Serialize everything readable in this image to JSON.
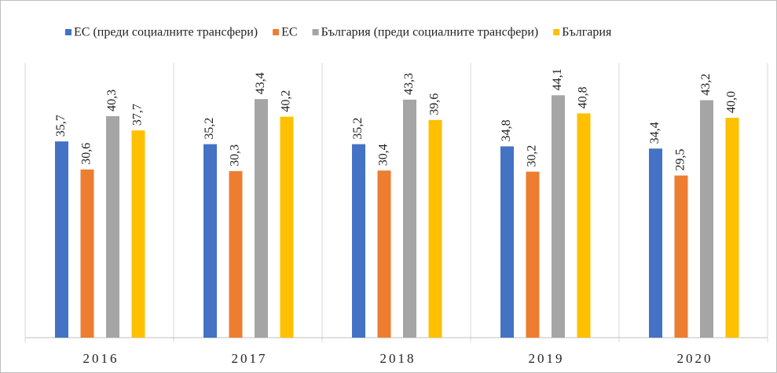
{
  "chart_data": {
    "type": "bar",
    "categories": [
      "2016",
      "2017",
      "2018",
      "2019",
      "2020"
    ],
    "ylim": [
      0,
      50
    ],
    "legend": "top",
    "series": [
      {
        "name": "ЕС (преди социалните трансфери)",
        "color": "#4472c4",
        "values": [
          35.7,
          35.2,
          35.2,
          34.8,
          34.4
        ],
        "value_labels": [
          "35,7",
          "35,2",
          "35,2",
          "34,8",
          "34,4"
        ]
      },
      {
        "name": "ЕС",
        "color": "#ed7d31",
        "values": [
          30.6,
          30.3,
          30.4,
          30.2,
          29.5
        ],
        "value_labels": [
          "30,6",
          "30,3",
          "30,4",
          "30,2",
          "29,5"
        ]
      },
      {
        "name": "България (преди социалните трансфери)",
        "color": "#a5a5a5",
        "values": [
          40.3,
          43.4,
          43.3,
          44.1,
          43.2
        ],
        "value_labels": [
          "40,3",
          "43,4",
          "43,3",
          "44,1",
          "43,2"
        ]
      },
      {
        "name": "България",
        "color": "#ffc000",
        "values": [
          37.7,
          40.2,
          39.6,
          40.8,
          40.0
        ],
        "value_labels": [
          "37,7",
          "40,2",
          "39,6",
          "40,8",
          "40,0"
        ]
      }
    ]
  }
}
